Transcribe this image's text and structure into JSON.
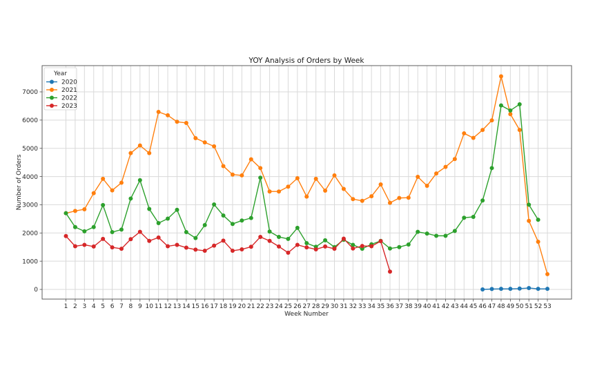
{
  "chart_data": {
    "type": "line",
    "title": "YOY Analysis of Orders by Week",
    "xlabel": "Week Number",
    "ylabel": "Number of Orders",
    "legend": {
      "title": "Year",
      "position": "upper left",
      "entries": [
        "2020",
        "2021",
        "2022",
        "2023"
      ]
    },
    "grid": true,
    "ylim": [
      -350,
      7900
    ],
    "xlim": [
      -1.5,
      54.5
    ],
    "y_ticks": [
      0,
      1000,
      2000,
      3000,
      4000,
      5000,
      6000,
      7000
    ],
    "x_ticks": [
      1,
      2,
      3,
      4,
      5,
      6,
      7,
      8,
      9,
      10,
      11,
      12,
      13,
      14,
      15,
      16,
      17,
      18,
      19,
      20,
      21,
      22,
      23,
      24,
      25,
      26,
      27,
      28,
      29,
      30,
      31,
      32,
      33,
      34,
      35,
      36,
      37,
      38,
      39,
      40,
      41,
      42,
      43,
      44,
      45,
      46,
      47,
      48,
      49,
      50,
      51,
      52,
      53
    ],
    "series": [
      {
        "name": "2020",
        "color": "#1f77b4",
        "x": [
          46,
          47,
          48,
          49,
          50,
          51,
          52,
          53
        ],
        "values": [
          0,
          15,
          20,
          20,
          30,
          50,
          20,
          20
        ]
      },
      {
        "name": "2021",
        "color": "#ff7f0e",
        "x": [
          1,
          2,
          3,
          4,
          5,
          6,
          7,
          8,
          9,
          10,
          11,
          12,
          13,
          14,
          15,
          16,
          17,
          18,
          19,
          20,
          21,
          22,
          23,
          24,
          25,
          26,
          27,
          28,
          29,
          30,
          31,
          32,
          33,
          34,
          35,
          36,
          37,
          38,
          39,
          40,
          41,
          42,
          43,
          44,
          45,
          46,
          47,
          48,
          49,
          50,
          51,
          52,
          53
        ],
        "values": [
          2700,
          2780,
          2840,
          3410,
          3920,
          3510,
          3780,
          4830,
          5100,
          4830,
          6290,
          6170,
          5940,
          5900,
          5360,
          5210,
          5070,
          4370,
          4070,
          4040,
          4610,
          4300,
          3470,
          3470,
          3640,
          3940,
          3290,
          3920,
          3500,
          4040,
          3560,
          3200,
          3140,
          3300,
          3720,
          3070,
          3240,
          3250,
          3990,
          3670,
          4110,
          4340,
          4620,
          5530,
          5370,
          5650,
          5990,
          7550,
          6210,
          5650,
          2430,
          1690,
          540
        ]
      },
      {
        "name": "2022",
        "color": "#2ca02c",
        "x": [
          1,
          2,
          3,
          4,
          5,
          6,
          7,
          8,
          9,
          10,
          11,
          12,
          13,
          14,
          15,
          16,
          17,
          18,
          19,
          20,
          21,
          22,
          23,
          24,
          25,
          26,
          27,
          28,
          29,
          30,
          31,
          32,
          33,
          34,
          35,
          36,
          37,
          38,
          39,
          40,
          41,
          42,
          43,
          44,
          45,
          46,
          47,
          48,
          49,
          50,
          51,
          52
        ],
        "values": [
          2700,
          2210,
          2060,
          2210,
          2990,
          2030,
          2120,
          3220,
          3870,
          2850,
          2350,
          2510,
          2820,
          2030,
          1820,
          2280,
          3010,
          2620,
          2320,
          2440,
          2530,
          3960,
          2050,
          1860,
          1790,
          2180,
          1640,
          1510,
          1740,
          1500,
          1760,
          1580,
          1440,
          1600,
          1720,
          1450,
          1500,
          1590,
          2040,
          1980,
          1900,
          1900,
          2070,
          2540,
          2570,
          3150,
          4300,
          6520,
          6340,
          6560,
          3000,
          2470
        ]
      },
      {
        "name": "2023",
        "color": "#d62728",
        "x": [
          1,
          2,
          3,
          4,
          5,
          6,
          7,
          8,
          9,
          10,
          11,
          12,
          13,
          14,
          15,
          16,
          17,
          18,
          19,
          20,
          21,
          22,
          23,
          24,
          25,
          26,
          27,
          28,
          29,
          30,
          31,
          32,
          33,
          34,
          35,
          36
        ],
        "values": [
          1890,
          1530,
          1580,
          1520,
          1790,
          1490,
          1440,
          1780,
          2040,
          1720,
          1840,
          1530,
          1580,
          1480,
          1410,
          1370,
          1550,
          1730,
          1370,
          1420,
          1510,
          1860,
          1720,
          1520,
          1300,
          1580,
          1490,
          1420,
          1520,
          1440,
          1800,
          1450,
          1540,
          1530,
          1710,
          630
        ]
      }
    ]
  }
}
